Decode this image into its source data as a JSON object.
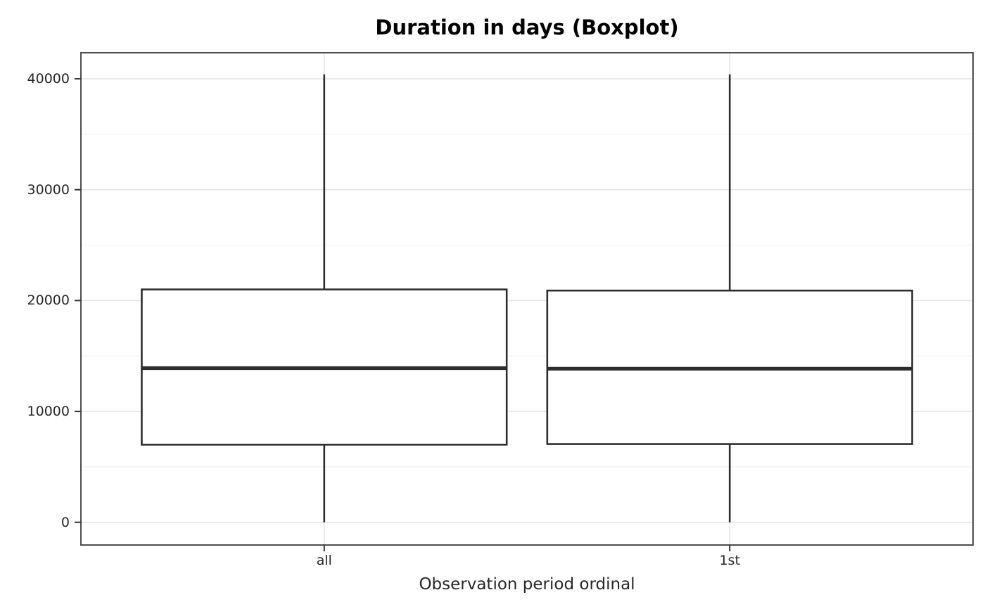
{
  "chart_data": {
    "type": "boxplot",
    "title": "Duration in days (Boxplot)",
    "xlabel": "Observation period ordinal",
    "ylabel": "",
    "categories": [
      "all",
      "1st"
    ],
    "series": [
      {
        "name": "all",
        "min": 0,
        "q1": 7000,
        "median": 13900,
        "q3": 21000,
        "max": 40400
      },
      {
        "name": "1st",
        "min": 0,
        "q1": 7050,
        "median": 13850,
        "q3": 20900,
        "max": 40400
      }
    ],
    "y_ticks": [
      "0",
      "10000",
      "20000",
      "30000",
      "40000"
    ],
    "y_tick_values": [
      0,
      10000,
      20000,
      30000,
      40000
    ],
    "y_minor_tick_values": [
      5000,
      15000,
      25000,
      35000
    ],
    "ylim": [
      -2050,
      42350
    ],
    "grid": true,
    "legend": false,
    "colors": {
      "background": "#ffffff",
      "panel_background": "#ffffff",
      "panel_border": "#4d4d4d",
      "grid_major": "#e5e5e5",
      "grid_minor": "#f2f2f2",
      "box_stroke": "#2d2d2d",
      "box_fill": "#ffffff",
      "median_stroke": "#2d2d2d",
      "tick_mark": "#333333",
      "tick_text": "#262626",
      "title_text": "#000000"
    }
  }
}
